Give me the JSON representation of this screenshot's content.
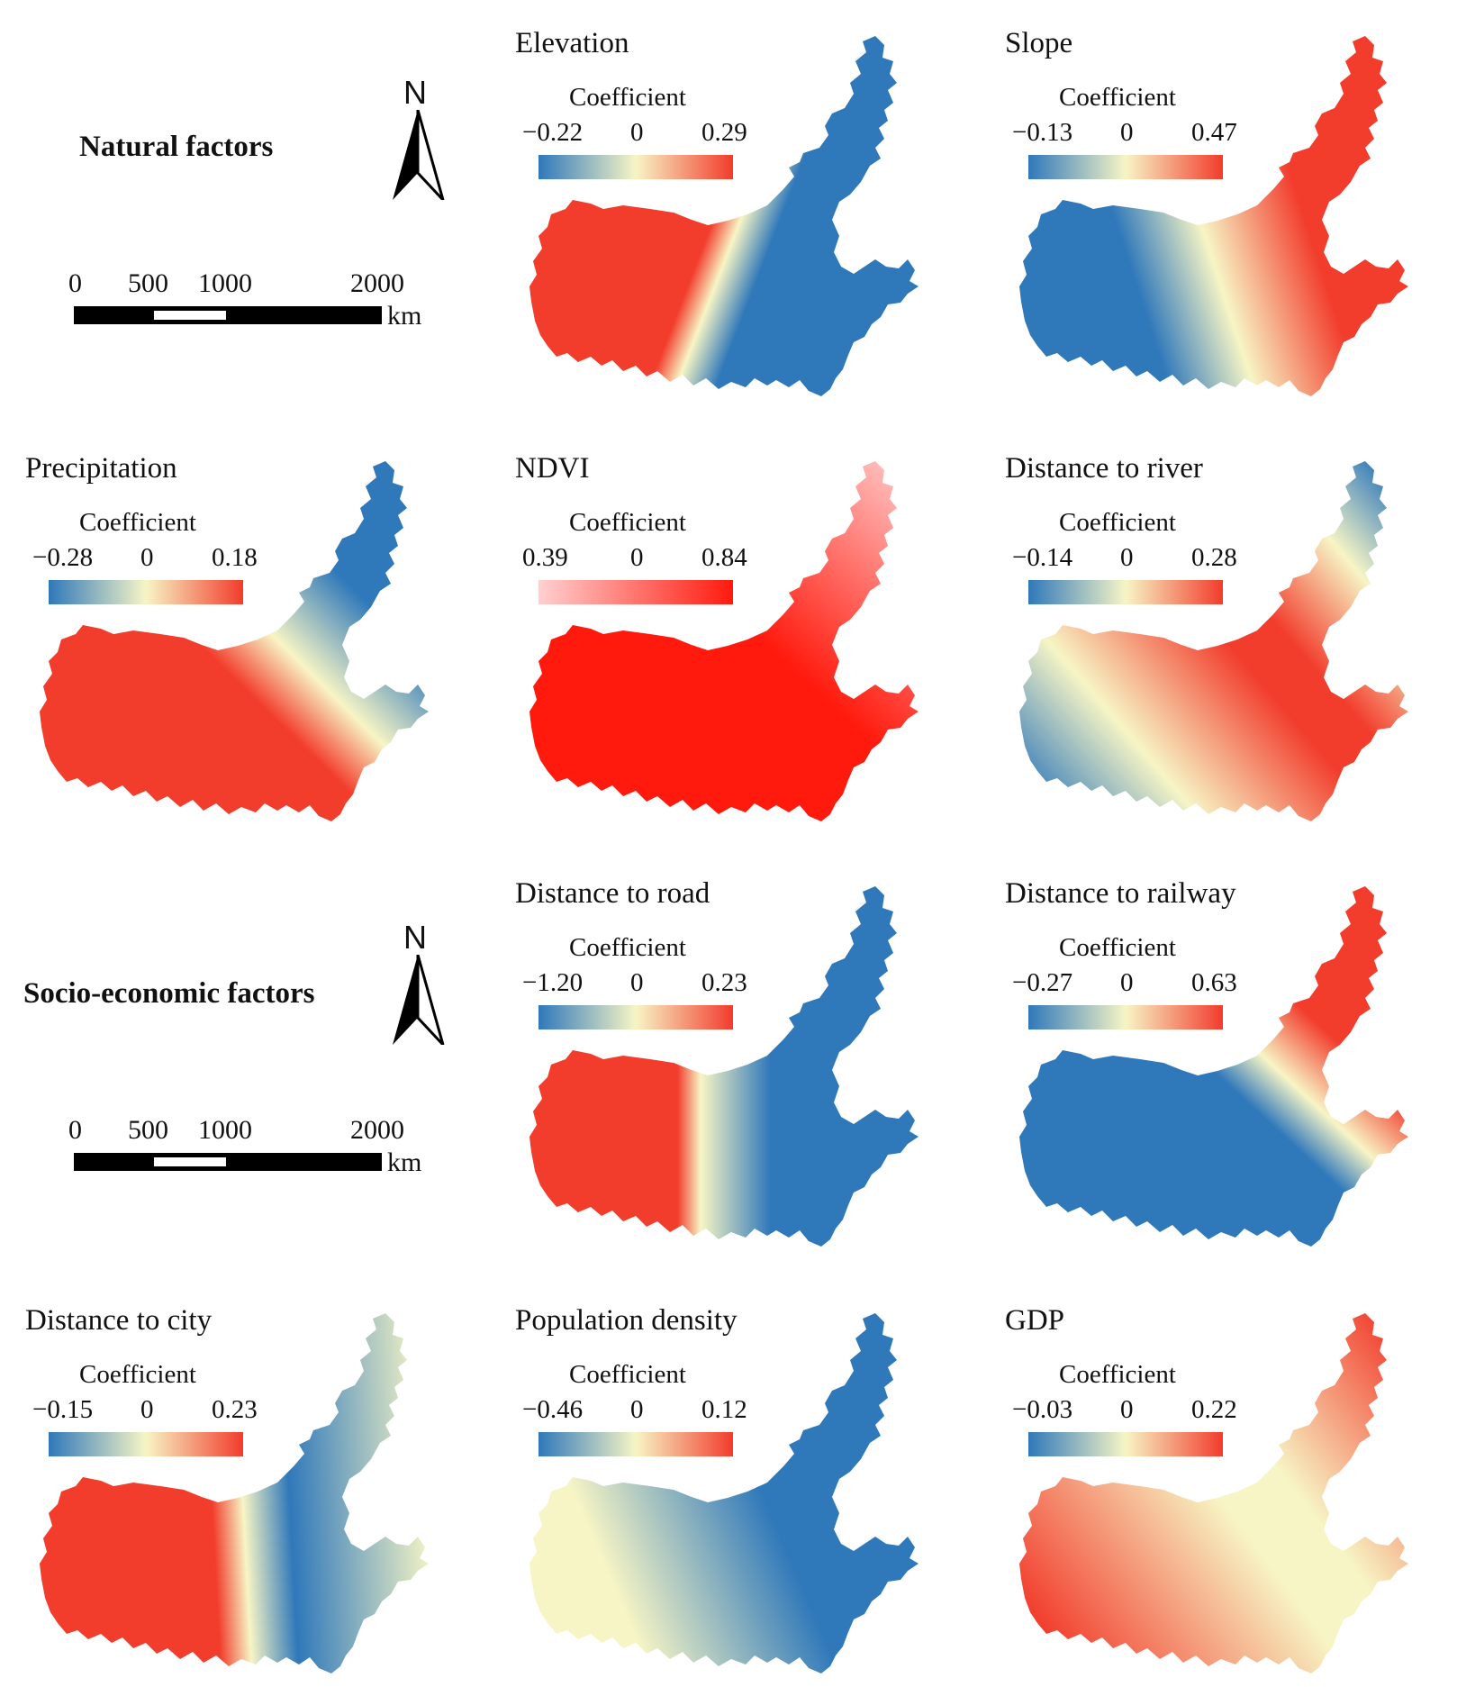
{
  "legend_common": {
    "coefficient_label": "Coefficient",
    "zero_label": "0"
  },
  "sections": {
    "natural": {
      "title": "Natural factors",
      "north_label": "N",
      "scale": {
        "ticks": [
          "0",
          "500",
          "1000",
          "2000"
        ],
        "unit": "km"
      }
    },
    "socio": {
      "title": "Socio-economic factors",
      "north_label": "N",
      "scale": {
        "ticks": [
          "0",
          "500",
          "1000",
          "2000"
        ],
        "unit": "km"
      }
    }
  },
  "colors": {
    "diverging_low": "#2f78ba",
    "diverging_mid": "#f7f5c5",
    "diverging_high": "#f23c2c",
    "sequential_low": "#ffd0d0",
    "sequential_high": "#ff1a0d"
  },
  "panels": [
    {
      "title": "Elevation",
      "min": "−0.22",
      "max": "0.29",
      "colormap": "diverging",
      "pattern": "red west, blue east, divide running northwest to southeast"
    },
    {
      "title": "Slope",
      "min": "−0.13",
      "max": "0.47",
      "colormap": "diverging",
      "pattern": "blue west, red northeast"
    },
    {
      "title": "Precipitation",
      "min": "−0.28",
      "max": "0.18",
      "colormap": "diverging",
      "pattern": "red southwest, blue northeast"
    },
    {
      "title": "NDVI",
      "min": "0.39",
      "max": "0.84",
      "colormap": "sequential",
      "pattern": "strong red centre, lighter toward northeast tip"
    },
    {
      "title": "Distance to river",
      "min": "−0.14",
      "max": "0.28",
      "colormap": "diverging",
      "pattern": "red centre, blue southwest and far northeast"
    },
    {
      "title": "Distance to road",
      "min": "−1.20",
      "max": "0.23",
      "colormap": "diverging",
      "pattern": "red west, blue east"
    },
    {
      "title": "Distance to railway",
      "min": "−0.27",
      "max": "0.63",
      "colormap": "diverging",
      "pattern": "blue southwest, red northeast"
    },
    {
      "title": "Distance to city",
      "min": "−0.15",
      "max": "0.23",
      "colormap": "diverging",
      "pattern": "red west, blue-pale east"
    },
    {
      "title": "Population density",
      "min": "−0.46",
      "max": "0.12",
      "colormap": "diverging",
      "pattern": "pale west, blue east, red northwest edge"
    },
    {
      "title": "GDP",
      "min": "−0.03",
      "max": "0.22",
      "colormap": "diverging",
      "pattern": "orange west, pale centre, red northeast tip, blue east peninsula"
    }
  ]
}
